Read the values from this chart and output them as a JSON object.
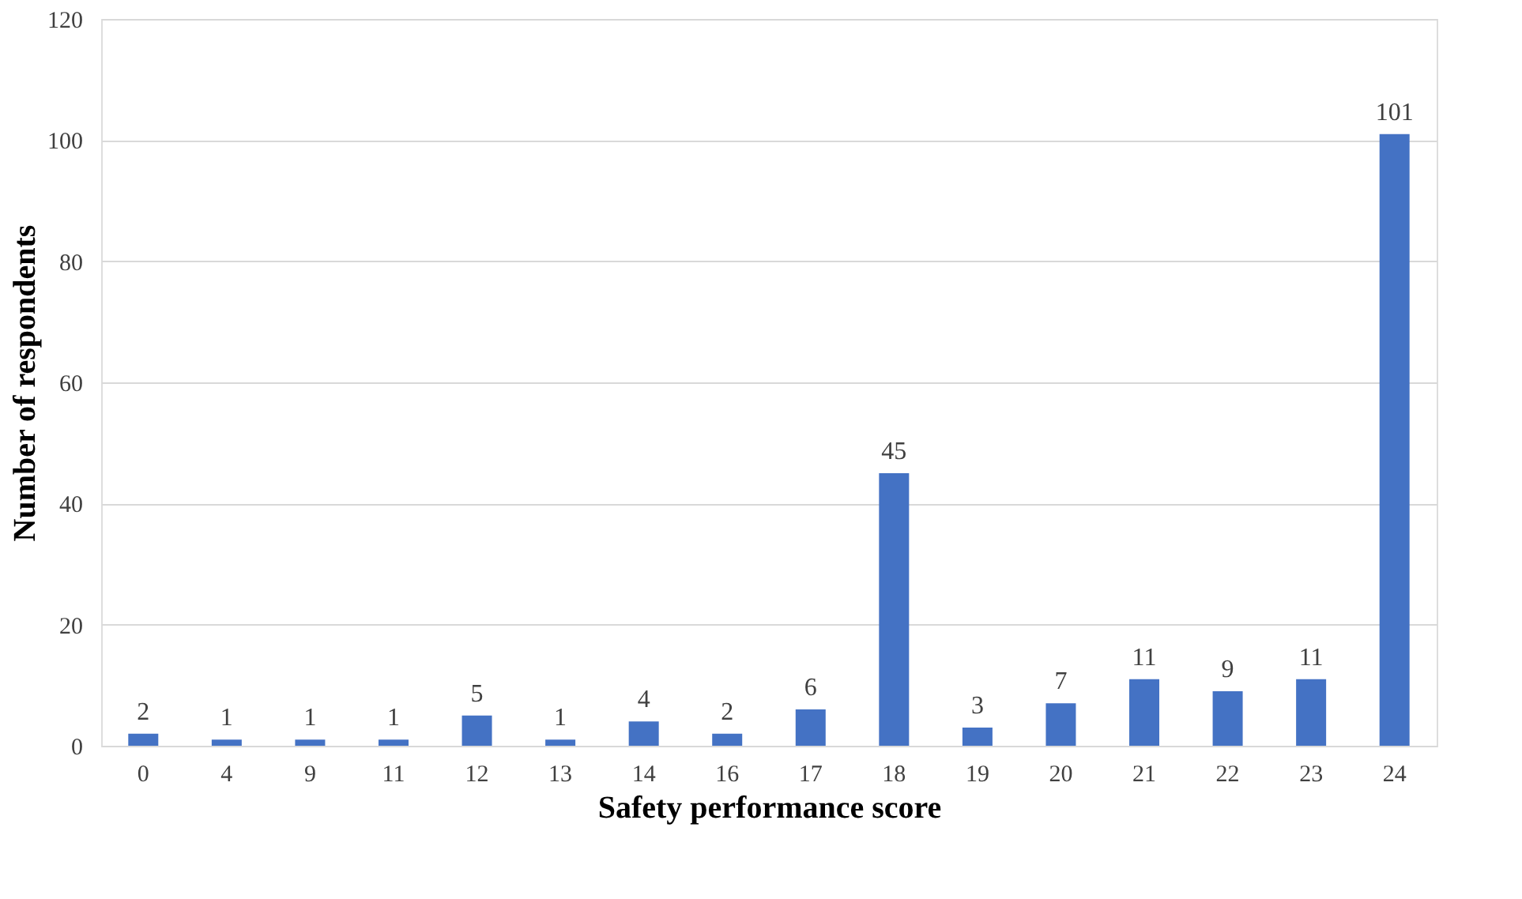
{
  "chart_data": {
    "type": "bar",
    "xlabel": "Safety performance score",
    "ylabel": "Number of respondents",
    "categories": [
      "0",
      "4",
      "9",
      "11",
      "12",
      "13",
      "14",
      "16",
      "17",
      "18",
      "19",
      "20",
      "21",
      "22",
      "23",
      "24"
    ],
    "values": [
      2,
      1,
      1,
      1,
      5,
      1,
      4,
      2,
      6,
      45,
      3,
      7,
      11,
      9,
      11,
      101
    ],
    "color": "#4472c4",
    "ylim": [
      0,
      120
    ],
    "yticks": [
      0,
      20,
      40,
      60,
      80,
      100,
      120
    ],
    "grid": "y",
    "data_labels": true
  }
}
